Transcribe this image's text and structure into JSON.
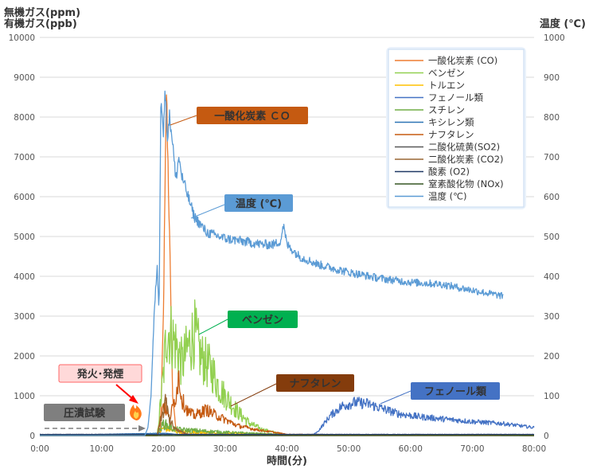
{
  "chart_data": {
    "type": "line",
    "title": "",
    "ylabel_left": [
      "無機ガス(ppm)",
      "有機ガス(ppb)"
    ],
    "ylabel_right": "温度 (℃)",
    "xlabel": "時間(分)",
    "x_ticks": [
      "0:00",
      "10:00",
      "20:00",
      "30:00",
      "40:00",
      "50:00",
      "60:00",
      "70:00",
      "80:00"
    ],
    "xlim": [
      0,
      80
    ],
    "x_unit": "minutes",
    "y_left_ticks": [
      "0",
      "1000",
      "2000",
      "3000",
      "4000",
      "5000",
      "6000",
      "7000",
      "8000",
      "9000",
      "10000"
    ],
    "y_right_ticks": [
      "0",
      "100",
      "200",
      "300",
      "400",
      "500",
      "600",
      "700",
      "800",
      "900",
      "1000"
    ],
    "ylim_left": [
      0,
      10000
    ],
    "ylim_right": [
      0,
      1000
    ],
    "grid": "horizontal",
    "legend_position": "top-right",
    "series": [
      {
        "name": "一酸化炭素 (CO)",
        "color": "#ED7D31",
        "axis": "left",
        "x": [
          0,
          18,
          19.5,
          20,
          20.5,
          21,
          21.5,
          22,
          23,
          25,
          30,
          40,
          80
        ],
        "y": [
          0,
          0,
          0,
          3000,
          8700,
          5000,
          1000,
          200,
          50,
          20,
          10,
          0,
          0
        ]
      },
      {
        "name": "ベンゼン",
        "color": "#92D050",
        "axis": "left",
        "x": [
          0,
          19,
          20,
          20.5,
          21,
          22,
          23,
          24,
          25,
          26,
          27,
          28,
          29,
          30,
          32,
          34,
          36,
          38,
          40,
          80
        ],
        "y": [
          0,
          0,
          1500,
          2600,
          2600,
          2300,
          1800,
          2200,
          2600,
          2000,
          1800,
          1600,
          1200,
          1000,
          600,
          300,
          150,
          80,
          20,
          0
        ]
      },
      {
        "name": "トルエン",
        "color": "#FFC000",
        "axis": "left",
        "x": [
          0,
          19,
          20,
          22,
          30,
          40,
          80
        ],
        "y": [
          0,
          0,
          200,
          100,
          60,
          20,
          0
        ]
      },
      {
        "name": "フェノール類",
        "color": "#4472C4",
        "axis": "left",
        "x": [
          0,
          44,
          45,
          47,
          49,
          51,
          53,
          55,
          58,
          61,
          65,
          70,
          75,
          80
        ],
        "y": [
          0,
          0,
          100,
          500,
          750,
          830,
          800,
          700,
          550,
          480,
          420,
          350,
          300,
          200
        ]
      },
      {
        "name": "スチレン",
        "color": "#70AD47",
        "axis": "left",
        "x": [
          0,
          19,
          20,
          22,
          30,
          40,
          80
        ],
        "y": [
          0,
          0,
          300,
          150,
          80,
          20,
          0
        ]
      },
      {
        "name": "キシレン類",
        "color": "#2E75B6",
        "axis": "left",
        "x": [
          0,
          20,
          22,
          30,
          80
        ],
        "y": [
          0,
          60,
          30,
          10,
          0
        ]
      },
      {
        "name": "ナフタレン",
        "color": "#C55A11",
        "axis": "left",
        "x": [
          0,
          19,
          20,
          21,
          22,
          22.5,
          23,
          24,
          25,
          26,
          27,
          28,
          30,
          32,
          35,
          38,
          40,
          80
        ],
        "y": [
          0,
          0,
          800,
          400,
          1000,
          1500,
          900,
          600,
          500,
          580,
          650,
          550,
          400,
          250,
          150,
          80,
          30,
          0
        ]
      },
      {
        "name": "二酸化硫黄(SO2)",
        "color": "#595959",
        "axis": "left",
        "x": [
          0,
          80
        ],
        "y": [
          0,
          0
        ]
      },
      {
        "name": "二酸化炭素 (CO2)",
        "color": "#996633",
        "axis": "left",
        "x": [
          0,
          19,
          20,
          20.5,
          21,
          22,
          24,
          80
        ],
        "y": [
          0,
          0,
          600,
          900,
          400,
          150,
          30,
          0
        ]
      },
      {
        "name": "酸素 (O2)",
        "color": "#1F3864",
        "axis": "left",
        "x": [
          0,
          80
        ],
        "y": [
          30,
          30
        ]
      },
      {
        "name": "窒素酸化物 (NOx)",
        "color": "#375623",
        "axis": "left",
        "x": [
          0,
          80
        ],
        "y": [
          0,
          0
        ]
      },
      {
        "name": "温度 (℃)",
        "color": "#5B9BD5",
        "axis": "right",
        "x": [
          0,
          17,
          17.5,
          18,
          18.5,
          19,
          19.3,
          19.6,
          20,
          20.3,
          20.6,
          21,
          21.5,
          22,
          22.5,
          23,
          24,
          25,
          26,
          27,
          28,
          30,
          32,
          34,
          36,
          38,
          39,
          39.4,
          40,
          42,
          45,
          50,
          55,
          60,
          65,
          70,
          75
        ],
        "y": [
          0,
          0,
          20,
          100,
          300,
          430,
          300,
          870,
          760,
          870,
          750,
          800,
          740,
          640,
          700,
          650,
          600,
          550,
          530,
          510,
          505,
          495,
          490,
          485,
          480,
          480,
          490,
          530,
          480,
          450,
          430,
          410,
          395,
          385,
          380,
          365,
          350
        ]
      }
    ],
    "annotations": [
      {
        "text": "一酸化炭素 ＣＯ",
        "color": "#C55A11"
      },
      {
        "text": "温度 (℃)",
        "color": "#5B9BD5"
      },
      {
        "text": "ベンゼン",
        "color": "#00B050"
      },
      {
        "text": "ナフタレン",
        "color": "#843C0C"
      },
      {
        "text": "フェノール類",
        "color": "#4472C4"
      },
      {
        "text": "発火･発煙",
        "color": "#FF0000"
      },
      {
        "text": "圧潰試験",
        "color": "#7F7F7F"
      }
    ]
  }
}
